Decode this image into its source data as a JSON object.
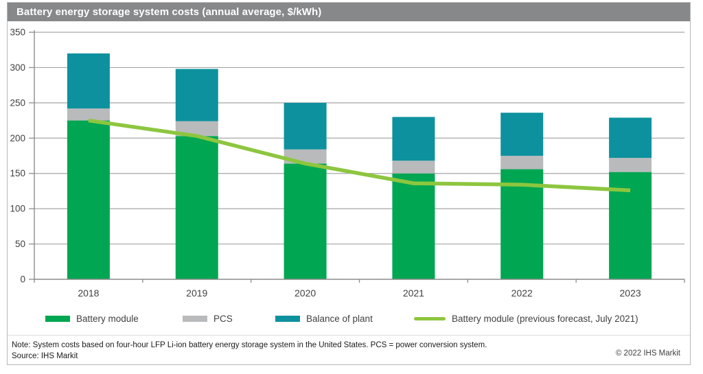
{
  "header": {
    "title": "Battery energy storage system costs (annual average, $/kWh)"
  },
  "colors": {
    "title_bar": "#87888a",
    "battery_module": "#00a651",
    "pcs": "#b9babc",
    "balance_of_plant": "#0e919e",
    "forecast_line": "#8dc63f",
    "gridline": "#a6a6a6",
    "axis": "#8c8c8c",
    "axis_text": "#414042"
  },
  "chart_data": {
    "type": "bar",
    "stacked": true,
    "title": "Battery energy storage system costs (annual average, $/kWh)",
    "xlabel": "",
    "ylabel": "$/kWh",
    "ylim": [
      0,
      350
    ],
    "yticks": [
      0,
      50,
      100,
      150,
      200,
      250,
      300,
      350
    ],
    "grid": true,
    "legend_position": "bottom",
    "categories": [
      "2018",
      "2019",
      "2020",
      "2021",
      "2022",
      "2023"
    ],
    "series": [
      {
        "name": "Battery module",
        "type": "bar",
        "color": "#00a651",
        "values": [
          225,
          203,
          164,
          150,
          156,
          152
        ]
      },
      {
        "name": "PCS",
        "type": "bar",
        "color": "#b9babc",
        "values": [
          17,
          21,
          20,
          18,
          19,
          20
        ]
      },
      {
        "name": "Balance of plant",
        "type": "bar",
        "color": "#0e919e",
        "values": [
          78,
          74,
          66,
          62,
          61,
          57
        ]
      },
      {
        "name": "Battery module (previous forecast, July 2021)",
        "type": "line",
        "color": "#8dc63f",
        "values": [
          225,
          203,
          164,
          136,
          134,
          126
        ]
      }
    ],
    "stack_totals": [
      320,
      298,
      250,
      230,
      236,
      229
    ]
  },
  "footer": {
    "note": "Note: System costs based on four-hour LFP Li-ion battery energy storage system in the United States. PCS = power conversion system.",
    "source": "Source: IHS Markit",
    "copyright": "© 2022 IHS Markit"
  }
}
